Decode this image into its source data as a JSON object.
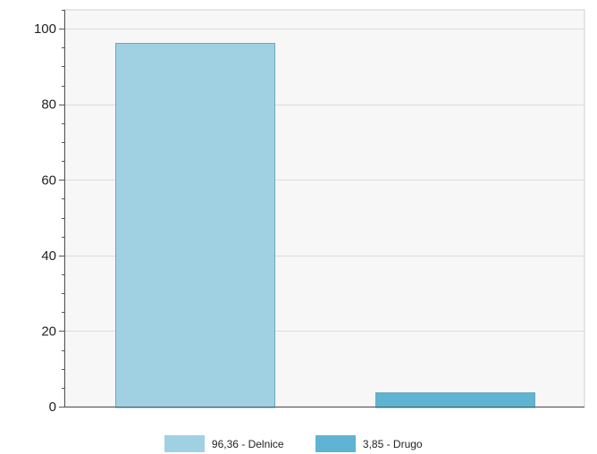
{
  "chart_data": {
    "type": "bar",
    "title": "",
    "xlabel": "",
    "ylabel": "",
    "categories": [
      "Delnice",
      "Drugo"
    ],
    "values": [
      96.36,
      3.85
    ],
    "ylim": [
      0,
      105
    ],
    "yticks": [
      0,
      20,
      40,
      60,
      80,
      100
    ],
    "grid": "horizontal",
    "legend_position": "bottom",
    "legend": [
      "96,36 - Delnice",
      "3,85 - Drugo"
    ],
    "colors": [
      "#9fd1e3",
      "#5fb4d3"
    ],
    "bar_stroke": "#6aa9bd",
    "plot_background": "#f7f7f7",
    "grid_color": "#dcdcdc",
    "axis_color": "#555555"
  }
}
